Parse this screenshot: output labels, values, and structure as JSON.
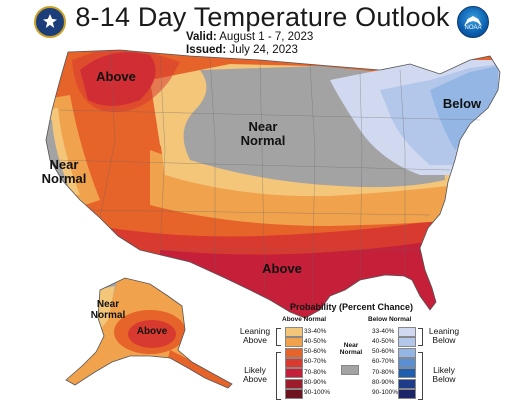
{
  "header": {
    "title": "8-14 Day Temperature Outlook",
    "valid_label": "Valid:",
    "valid_value": "August 1 - 7, 2023",
    "issued_label": "Issued:",
    "issued_value": "July 24, 2023"
  },
  "logos": {
    "left_icon": "doc-seal-icon",
    "right_icon": "noaa-logo-icon",
    "right_text": "NOAA"
  },
  "map_labels": {
    "above_nw": "Above",
    "near_normal_center_1": "Near",
    "near_normal_center_2": "Normal",
    "near_normal_west_1": "Near",
    "near_normal_west_2": "Normal",
    "below_ne": "Below",
    "above_south": "Above",
    "alaska_near_1": "Near",
    "alaska_near_2": "Normal",
    "alaska_above": "Above"
  },
  "legend": {
    "title": "Probability (Percent Chance)",
    "above_header": "Above Normal",
    "below_header": "Below Normal",
    "above": [
      "33-40%",
      "40-50%",
      "50-60%",
      "60-70%",
      "70-80%",
      "80-90%",
      "90-100%"
    ],
    "below": [
      "33-40%",
      "40-50%",
      "50-60%",
      "60-70%",
      "70-80%",
      "80-90%",
      "90-100%"
    ],
    "near_normal_1": "Near",
    "near_normal_2": "Normal",
    "leaning_above_1": "Leaning",
    "leaning_above_2": "Above",
    "likely_above_1": "Likely",
    "likely_above_2": "Above",
    "leaning_below_1": "Leaning",
    "leaning_below_2": "Below",
    "likely_below_1": "Likely",
    "likely_below_2": "Below",
    "colors_above": [
      "#f3c67a",
      "#f0a24d",
      "#e6632a",
      "#d93a2f",
      "#c51f3a",
      "#9c1d2c",
      "#6e1420"
    ],
    "colors_below": [
      "#d0d9ef",
      "#b3c7ea",
      "#93b6e4",
      "#5b8fd4",
      "#1f5fb0",
      "#1d3d8a",
      "#1b2567"
    ],
    "color_near": "#a3a3a3"
  }
}
